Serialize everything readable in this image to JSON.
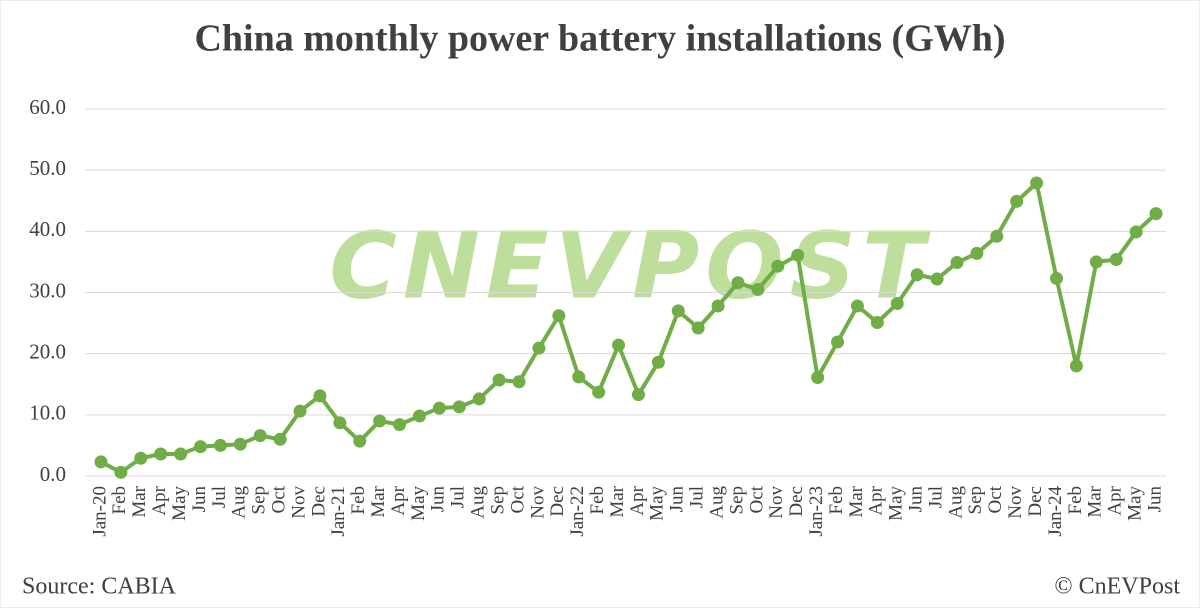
{
  "chart_data": {
    "type": "line",
    "title": "China monthly power battery installations (GWh)",
    "watermark": "CNEVPOST",
    "source": "Source: CABIA",
    "copyright": "© CnEVPost",
    "categories": [
      "Jan-20",
      "Feb",
      "Mar",
      "Apr",
      "May",
      "Jun",
      "Jul",
      "Aug",
      "Sep",
      "Oct",
      "Nov",
      "Dec",
      "Jan-21",
      "Feb",
      "Mar",
      "Apr",
      "May",
      "Jun",
      "Jul",
      "Aug",
      "Sep",
      "Oct",
      "Nov",
      "Dec",
      "Jan-22",
      "Feb",
      "Mar",
      "Apr",
      "May",
      "Jun",
      "Jul",
      "Aug",
      "Sep",
      "Oct",
      "Nov",
      "Dec",
      "Jan-23",
      "Feb",
      "Mar",
      "Apr",
      "May",
      "Jun",
      "Jul",
      "Aug",
      "Sep",
      "Oct",
      "Nov",
      "Dec",
      "Jan-24",
      "Feb",
      "Mar",
      "Apr",
      "May",
      "Jun"
    ],
    "values": [
      2.3,
      0.6,
      2.9,
      3.6,
      3.6,
      4.8,
      5.0,
      5.2,
      6.6,
      6.0,
      10.6,
      13.1,
      8.7,
      5.7,
      9.0,
      8.4,
      9.8,
      11.1,
      11.3,
      12.6,
      15.7,
      15.4,
      20.9,
      26.2,
      16.2,
      13.7,
      21.4,
      13.3,
      18.6,
      27.0,
      24.2,
      27.8,
      31.6,
      30.5,
      34.3,
      36.1,
      16.1,
      21.9,
      27.8,
      25.1,
      28.2,
      32.9,
      32.2,
      34.9,
      36.4,
      39.2,
      44.9,
      47.9,
      32.3,
      18.0,
      35.0,
      35.4,
      39.9,
      42.9
    ],
    "color": "#70ad47",
    "ylim": [
      0,
      60
    ],
    "yticks": [
      {
        "value": 0,
        "label": "0.0"
      },
      {
        "value": 10,
        "label": "10.0"
      },
      {
        "value": 20,
        "label": "20.0"
      },
      {
        "value": 30,
        "label": "30.0"
      },
      {
        "value": 40,
        "label": "40.0"
      },
      {
        "value": 50,
        "label": "50.0"
      },
      {
        "value": 60,
        "label": "60.0"
      }
    ],
    "grid": true
  }
}
